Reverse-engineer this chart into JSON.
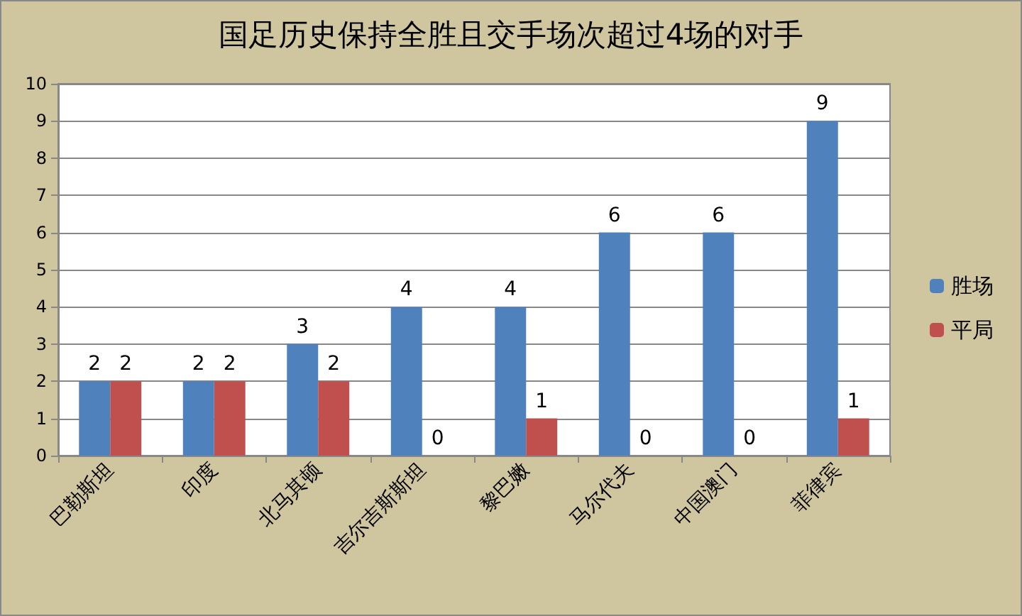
{
  "chart_data": {
    "type": "bar",
    "title": "国足历史保持全胜且交手场次超过4场的对手",
    "categories": [
      "巴勒斯坦",
      "印度",
      "北马其顿",
      "吉尔吉斯斯坦",
      "黎巴嫩",
      "马尔代夫",
      "中国澳门",
      "菲律宾"
    ],
    "series": [
      {
        "name": "胜场",
        "color": "#4f81bd",
        "values": [
          2,
          2,
          3,
          4,
          4,
          6,
          6,
          9
        ]
      },
      {
        "name": "平局",
        "color": "#c0504d",
        "values": [
          2,
          2,
          2,
          0,
          1,
          0,
          0,
          1
        ]
      }
    ],
    "ylim": [
      0,
      10
    ],
    "yticks": [
      0,
      1,
      2,
      3,
      4,
      5,
      6,
      7,
      8,
      9,
      10
    ],
    "grid": "y",
    "legend": "right",
    "data_labels": true
  }
}
